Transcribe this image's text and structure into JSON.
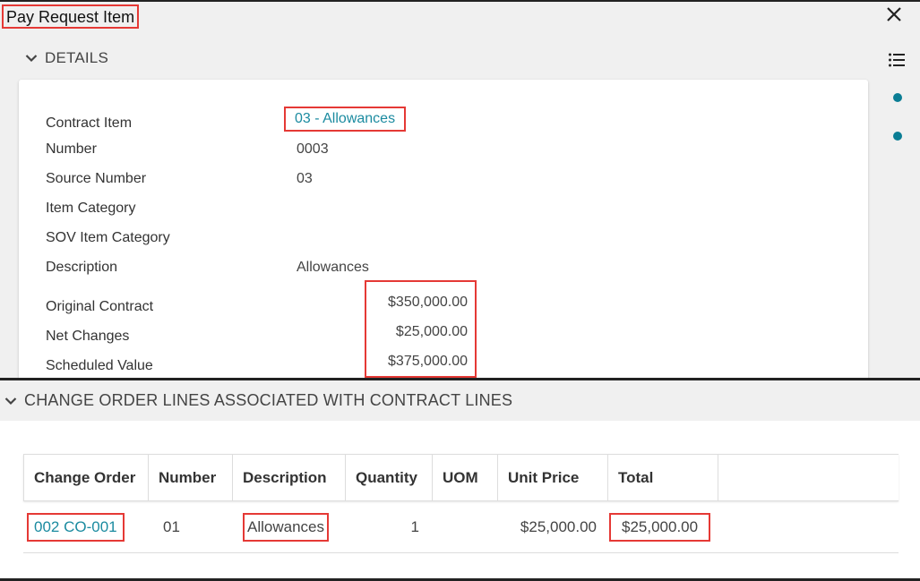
{
  "window": {
    "title": "Pay Request Item"
  },
  "details": {
    "section_label": "DETAILS",
    "fields": [
      {
        "label": "Contract Item",
        "value": "03 - Allowances"
      },
      {
        "label": "Number",
        "value": "0003"
      },
      {
        "label": "Source Number",
        "value": "03"
      },
      {
        "label": "Item Category",
        "value": ""
      },
      {
        "label": "SOV Item Category",
        "value": ""
      },
      {
        "label": "Description",
        "value": "Allowances"
      },
      {
        "label": "Original Contract",
        "value": "$350,000.00"
      },
      {
        "label": "Net Changes",
        "value": "$25,000.00"
      },
      {
        "label": "Scheduled Value",
        "value": "$375,000.00"
      }
    ]
  },
  "change_orders": {
    "section_label": "CHANGE ORDER LINES ASSOCIATED WITH CONTRACT LINES",
    "columns": [
      "Change Order",
      "Number",
      "Description",
      "Quantity",
      "UOM",
      "Unit Price",
      "Total",
      ""
    ],
    "rows": [
      {
        "change_order": "002 CO-001",
        "number": "01",
        "description": "Allowances",
        "quantity": "1",
        "uom": "",
        "unit_price": "$25,000.00",
        "total": "$25,000.00"
      }
    ]
  },
  "icons": {
    "close": "close-icon",
    "collapse": "chevron-down-icon",
    "list": "list-icon"
  },
  "colors": {
    "link": "#1b8ba0",
    "highlight": "#e53935",
    "dot": "#0a7d94"
  }
}
